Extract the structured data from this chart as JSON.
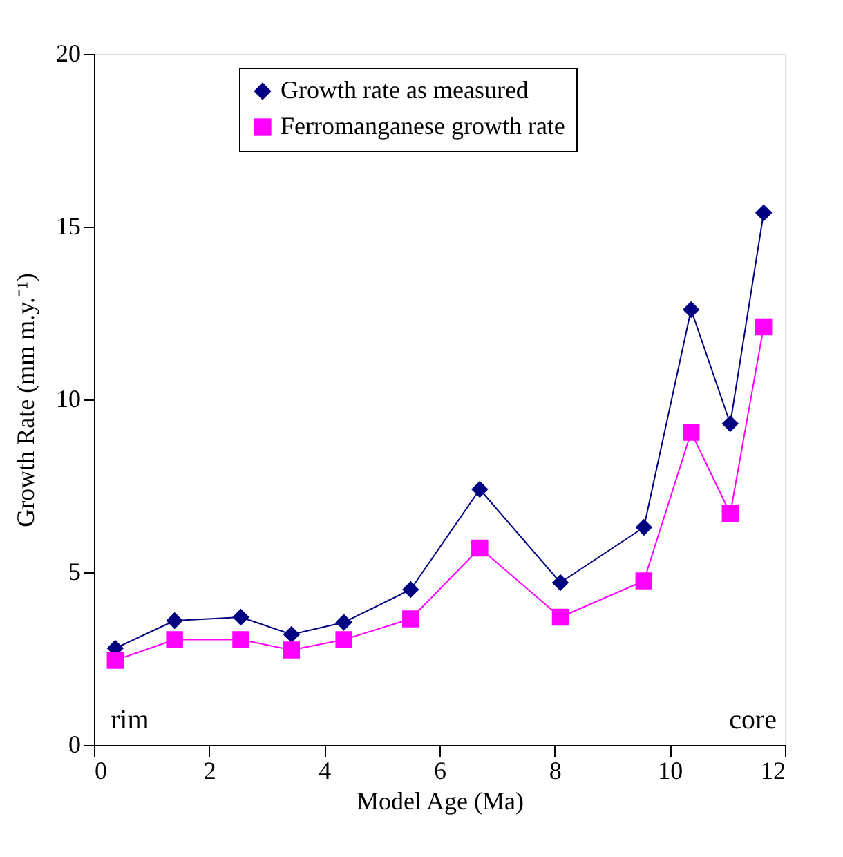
{
  "chart_data": {
    "type": "line",
    "xlabel": "Model Age (Ma)",
    "ylabel": "Growth Rate (mm m.y.⁻¹)",
    "x": [
      0.37,
      1.4,
      2.55,
      3.43,
      4.34,
      5.5,
      6.7,
      8.1,
      9.55,
      10.37,
      11.05,
      11.63
    ],
    "series": [
      {
        "name": "Growth rate as measured",
        "color": "#000080",
        "marker": "diamond",
        "values": [
          2.8,
          3.6,
          3.7,
          3.2,
          3.55,
          4.5,
          7.4,
          4.7,
          6.3,
          12.6,
          9.3,
          15.4
        ]
      },
      {
        "name": "Ferromanganese growth rate",
        "color": "#ff00ff",
        "marker": "square",
        "values": [
          2.45,
          3.05,
          3.05,
          2.75,
          3.05,
          3.65,
          5.7,
          3.7,
          4.75,
          9.05,
          6.7,
          12.1
        ]
      }
    ],
    "xlim": [
      0,
      12
    ],
    "xticks": [
      0,
      2,
      4,
      6,
      8,
      10,
      12
    ],
    "ylim": [
      0,
      20
    ],
    "yticks": [
      0,
      5,
      10,
      15,
      20
    ],
    "grid": false,
    "legend": "top",
    "line_style": "solid",
    "annotations": [
      "rim",
      "core"
    ]
  }
}
